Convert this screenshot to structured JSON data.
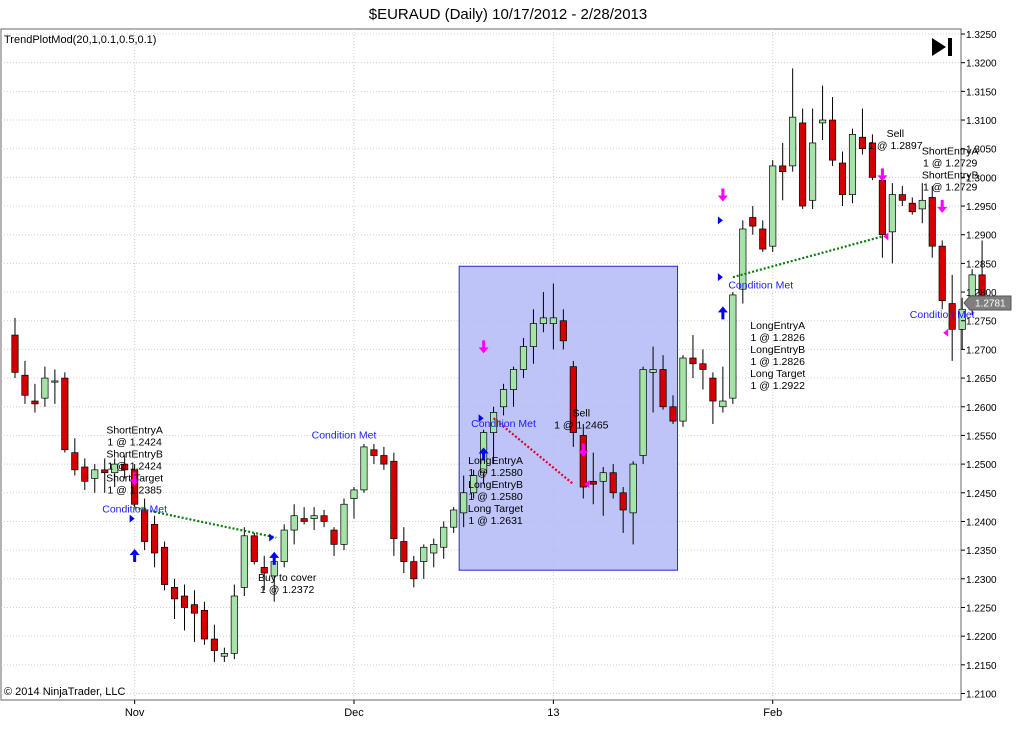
{
  "title": "$EURAUD (Daily)  10/17/2012 - 2/28/2013",
  "indicator_label": "TrendPlotMod(20,1,0.1,0.5,0.1)",
  "copyright": "© 2014 NinjaTrader, LLC",
  "current_price_label": "1.2781",
  "colors": {
    "up": "#a6e3a9",
    "down": "#d40000",
    "wick": "#000000",
    "highlight_fill": "#b3b9f7",
    "highlight_border": "#2a2acc",
    "marker_down": "#ff00ff",
    "marker_up": "#0000ff",
    "condition_text": "#1c1cff",
    "win_line": "#0a7a0a",
    "loss_line": "#e0002a",
    "last_price": "#7f7f7f"
  },
  "chart_data": {
    "type": "candlestick",
    "title": "$EURAUD (Daily)  10/17/2012 - 2/28/2013",
    "ylim": [
      1.21,
      1.325
    ],
    "y_ticks": [
      "1.3250",
      "1.3200",
      "1.3150",
      "1.3100",
      "1.3050",
      "1.3000",
      "1.2950",
      "1.2900",
      "1.2850",
      "1.2800",
      "1.2750",
      "1.2700",
      "1.2650",
      "1.2600",
      "1.2550",
      "1.2500",
      "1.2450",
      "1.2400",
      "1.2350",
      "1.2300",
      "1.2250",
      "1.2200",
      "1.2150",
      "1.2100"
    ],
    "x_tick_labels": [
      {
        "label": "Nov",
        "bar": 12
      },
      {
        "label": "Dec",
        "bar": 34
      },
      {
        "label": "13",
        "bar": 54
      },
      {
        "label": "Feb",
        "bar": 76
      }
    ],
    "grid": true,
    "bars": [
      {
        "o": 1.2725,
        "h": 1.2755,
        "l": 1.265,
        "c": 1.266
      },
      {
        "o": 1.2655,
        "h": 1.268,
        "l": 1.2605,
        "c": 1.262
      },
      {
        "o": 1.261,
        "h": 1.264,
        "l": 1.259,
        "c": 1.2605
      },
      {
        "o": 1.2615,
        "h": 1.267,
        "l": 1.26,
        "c": 1.265
      },
      {
        "o": 1.2645,
        "h": 1.2665,
        "l": 1.2605,
        "c": 1.2645
      },
      {
        "o": 1.265,
        "h": 1.266,
        "l": 1.252,
        "c": 1.2525
      },
      {
        "o": 1.252,
        "h": 1.2545,
        "l": 1.248,
        "c": 1.249
      },
      {
        "o": 1.2495,
        "h": 1.251,
        "l": 1.2455,
        "c": 1.247
      },
      {
        "o": 1.2475,
        "h": 1.25,
        "l": 1.245,
        "c": 1.249
      },
      {
        "o": 1.249,
        "h": 1.251,
        "l": 1.245,
        "c": 1.2485
      },
      {
        "o": 1.2485,
        "h": 1.251,
        "l": 1.246,
        "c": 1.25
      },
      {
        "o": 1.25,
        "h": 1.2515,
        "l": 1.2475,
        "c": 1.249
      },
      {
        "o": 1.249,
        "h": 1.25,
        "l": 1.2425,
        "c": 1.243
      },
      {
        "o": 1.242,
        "h": 1.244,
        "l": 1.235,
        "c": 1.2365
      },
      {
        "o": 1.2395,
        "h": 1.241,
        "l": 1.232,
        "c": 1.2345
      },
      {
        "o": 1.2355,
        "h": 1.2365,
        "l": 1.228,
        "c": 1.229
      },
      {
        "o": 1.2285,
        "h": 1.23,
        "l": 1.223,
        "c": 1.2265
      },
      {
        "o": 1.227,
        "h": 1.229,
        "l": 1.221,
        "c": 1.225
      },
      {
        "o": 1.2255,
        "h": 1.228,
        "l": 1.219,
        "c": 1.224
      },
      {
        "o": 1.2245,
        "h": 1.226,
        "l": 1.2185,
        "c": 1.2195
      },
      {
        "o": 1.2195,
        "h": 1.222,
        "l": 1.2155,
        "c": 1.2175
      },
      {
        "o": 1.2165,
        "h": 1.218,
        "l": 1.2155,
        "c": 1.217
      },
      {
        "o": 1.217,
        "h": 1.229,
        "l": 1.216,
        "c": 1.227
      },
      {
        "o": 1.2285,
        "h": 1.239,
        "l": 1.227,
        "c": 1.2375
      },
      {
        "o": 1.2375,
        "h": 1.238,
        "l": 1.2325,
        "c": 1.233
      },
      {
        "o": 1.232,
        "h": 1.234,
        "l": 1.228,
        "c": 1.231
      },
      {
        "o": 1.2305,
        "h": 1.2345,
        "l": 1.226,
        "c": 1.233
      },
      {
        "o": 1.233,
        "h": 1.2395,
        "l": 1.232,
        "c": 1.2385
      },
      {
        "o": 1.2385,
        "h": 1.243,
        "l": 1.236,
        "c": 1.241
      },
      {
        "o": 1.2405,
        "h": 1.2425,
        "l": 1.2395,
        "c": 1.24
      },
      {
        "o": 1.2405,
        "h": 1.2425,
        "l": 1.2385,
        "c": 1.241
      },
      {
        "o": 1.241,
        "h": 1.242,
        "l": 1.239,
        "c": 1.24
      },
      {
        "o": 1.2385,
        "h": 1.239,
        "l": 1.234,
        "c": 1.236
      },
      {
        "o": 1.236,
        "h": 1.244,
        "l": 1.235,
        "c": 1.243
      },
      {
        "o": 1.244,
        "h": 1.246,
        "l": 1.2405,
        "c": 1.2455
      },
      {
        "o": 1.2455,
        "h": 1.2535,
        "l": 1.245,
        "c": 1.253
      },
      {
        "o": 1.2525,
        "h": 1.2535,
        "l": 1.25,
        "c": 1.2515
      },
      {
        "o": 1.2515,
        "h": 1.253,
        "l": 1.249,
        "c": 1.25
      },
      {
        "o": 1.2505,
        "h": 1.252,
        "l": 1.234,
        "c": 1.237
      },
      {
        "o": 1.2365,
        "h": 1.239,
        "l": 1.231,
        "c": 1.233
      },
      {
        "o": 1.233,
        "h": 1.234,
        "l": 1.2285,
        "c": 1.23
      },
      {
        "o": 1.233,
        "h": 1.236,
        "l": 1.23,
        "c": 1.2355
      },
      {
        "o": 1.2345,
        "h": 1.237,
        "l": 1.232,
        "c": 1.236
      },
      {
        "o": 1.2355,
        "h": 1.24,
        "l": 1.2335,
        "c": 1.239
      },
      {
        "o": 1.239,
        "h": 1.2425,
        "l": 1.238,
        "c": 1.242
      },
      {
        "o": 1.2415,
        "h": 1.248,
        "l": 1.239,
        "c": 1.245
      },
      {
        "o": 1.245,
        "h": 1.249,
        "l": 1.244,
        "c": 1.248
      },
      {
        "o": 1.2485,
        "h": 1.256,
        "l": 1.2465,
        "c": 1.2555
      },
      {
        "o": 1.2555,
        "h": 1.26,
        "l": 1.25,
        "c": 1.259
      },
      {
        "o": 1.26,
        "h": 1.264,
        "l": 1.2585,
        "c": 1.263
      },
      {
        "o": 1.263,
        "h": 1.267,
        "l": 1.26,
        "c": 1.2665
      },
      {
        "o": 1.2665,
        "h": 1.272,
        "l": 1.265,
        "c": 1.2705
      },
      {
        "o": 1.2705,
        "h": 1.277,
        "l": 1.2675,
        "c": 1.2745
      },
      {
        "o": 1.2745,
        "h": 1.28,
        "l": 1.273,
        "c": 1.2755
      },
      {
        "o": 1.2745,
        "h": 1.2815,
        "l": 1.27,
        "c": 1.2755
      },
      {
        "o": 1.275,
        "h": 1.277,
        "l": 1.27,
        "c": 1.2715
      },
      {
        "o": 1.267,
        "h": 1.268,
        "l": 1.253,
        "c": 1.2555
      },
      {
        "o": 1.255,
        "h": 1.257,
        "l": 1.244,
        "c": 1.246
      },
      {
        "o": 1.247,
        "h": 1.252,
        "l": 1.243,
        "c": 1.2465
      },
      {
        "o": 1.247,
        "h": 1.2495,
        "l": 1.241,
        "c": 1.2485
      },
      {
        "o": 1.2485,
        "h": 1.25,
        "l": 1.244,
        "c": 1.245
      },
      {
        "o": 1.245,
        "h": 1.246,
        "l": 1.238,
        "c": 1.242
      },
      {
        "o": 1.2415,
        "h": 1.2505,
        "l": 1.236,
        "c": 1.25
      },
      {
        "o": 1.2515,
        "h": 1.267,
        "l": 1.25,
        "c": 1.2665
      },
      {
        "o": 1.266,
        "h": 1.2705,
        "l": 1.259,
        "c": 1.2665
      },
      {
        "o": 1.2665,
        "h": 1.269,
        "l": 1.2595,
        "c": 1.26
      },
      {
        "o": 1.26,
        "h": 1.262,
        "l": 1.257,
        "c": 1.2575
      },
      {
        "o": 1.2575,
        "h": 1.269,
        "l": 1.2565,
        "c": 1.2685
      },
      {
        "o": 1.2685,
        "h": 1.2725,
        "l": 1.265,
        "c": 1.2675
      },
      {
        "o": 1.2675,
        "h": 1.27,
        "l": 1.263,
        "c": 1.2665
      },
      {
        "o": 1.265,
        "h": 1.266,
        "l": 1.257,
        "c": 1.261
      },
      {
        "o": 1.26,
        "h": 1.267,
        "l": 1.259,
        "c": 1.261
      },
      {
        "o": 1.2615,
        "h": 1.28,
        "l": 1.2605,
        "c": 1.2795
      },
      {
        "o": 1.2805,
        "h": 1.2925,
        "l": 1.278,
        "c": 1.291
      },
      {
        "o": 1.293,
        "h": 1.295,
        "l": 1.29,
        "c": 1.2915
      },
      {
        "o": 1.291,
        "h": 1.2925,
        "l": 1.287,
        "c": 1.2875
      },
      {
        "o": 1.288,
        "h": 1.303,
        "l": 1.287,
        "c": 1.302
      },
      {
        "o": 1.302,
        "h": 1.306,
        "l": 1.296,
        "c": 1.301
      },
      {
        "o": 1.302,
        "h": 1.319,
        "l": 1.301,
        "c": 1.3105
      },
      {
        "o": 1.3095,
        "h": 1.312,
        "l": 1.2945,
        "c": 1.295
      },
      {
        "o": 1.296,
        "h": 1.312,
        "l": 1.2945,
        "c": 1.306
      },
      {
        "o": 1.3095,
        "h": 1.316,
        "l": 1.3065,
        "c": 1.31
      },
      {
        "o": 1.31,
        "h": 1.314,
        "l": 1.302,
        "c": 1.303
      },
      {
        "o": 1.3025,
        "h": 1.3045,
        "l": 1.295,
        "c": 1.297
      },
      {
        "o": 1.297,
        "h": 1.3085,
        "l": 1.2955,
        "c": 1.3075
      },
      {
        "o": 1.307,
        "h": 1.312,
        "l": 1.304,
        "c": 1.305
      },
      {
        "o": 1.306,
        "h": 1.3075,
        "l": 1.2995,
        "c": 1.3
      },
      {
        "o": 1.2995,
        "h": 1.301,
        "l": 1.286,
        "c": 1.29
      },
      {
        "o": 1.2905,
        "h": 1.299,
        "l": 1.285,
        "c": 1.297
      },
      {
        "o": 1.297,
        "h": 1.2985,
        "l": 1.295,
        "c": 1.296
      },
      {
        "o": 1.2955,
        "h": 1.2965,
        "l": 1.2935,
        "c": 1.294
      },
      {
        "o": 1.2945,
        "h": 1.299,
        "l": 1.292,
        "c": 1.296
      },
      {
        "o": 1.2965,
        "h": 1.2985,
        "l": 1.286,
        "c": 1.288
      },
      {
        "o": 1.288,
        "h": 1.289,
        "l": 1.277,
        "c": 1.2785
      },
      {
        "o": 1.278,
        "h": 1.283,
        "l": 1.268,
        "c": 1.2735
      },
      {
        "o": 1.2735,
        "h": 1.279,
        "l": 1.27,
        "c": 1.277
      },
      {
        "o": 1.277,
        "h": 1.284,
        "l": 1.276,
        "c": 1.283
      },
      {
        "o": 1.283,
        "h": 1.289,
        "l": 1.277,
        "c": 1.2785
      }
    ],
    "highlight_region": {
      "from_bar": 45,
      "to_bar": 66,
      "y_top": 1.2845,
      "y_bottom": 1.2315
    },
    "annotations": [
      {
        "bar": 12.0,
        "price": 1.2553,
        "lines": [
          "ShortEntryA",
          "1 @ 1.2424",
          "ShortEntryB",
          "1 @ 1.2424",
          "Short Target",
          "1 @ 1.2385"
        ],
        "color": "#000000",
        "anchor": "middle"
      },
      {
        "bar": 12.0,
        "price": 1.2416,
        "lines": [
          "Condition Met"
        ],
        "color": "#1c1cff",
        "anchor": "middle"
      },
      {
        "bar": 27.3,
        "price": 1.2296,
        "lines": [
          "Buy to cover",
          "1 @ 1.2372"
        ],
        "color": "#000000",
        "anchor": "middle"
      },
      {
        "bar": 33.0,
        "price": 1.2545,
        "lines": [
          "Condition Met"
        ],
        "color": "#1c1cff",
        "anchor": "middle"
      },
      {
        "bar": 49.0,
        "price": 1.2565,
        "lines": [
          "Condition Met"
        ],
        "color": "#1c1cff",
        "anchor": "middle"
      },
      {
        "bar": 48.2,
        "price": 1.25,
        "lines": [
          "LongEntryA",
          "1 @ 1.2580",
          "LongEntryB",
          "1 @ 1.2580",
          "Long Target",
          "1 @ 1.2631"
        ],
        "color": "#000000",
        "anchor": "middle"
      },
      {
        "bar": 56.8,
        "price": 1.2583,
        "lines": [
          "Sell",
          "1 @ 1.2465"
        ],
        "color": "#000000",
        "anchor": "middle"
      },
      {
        "bar": 74.8,
        "price": 1.2806,
        "lines": [
          "Condition Met"
        ],
        "color": "#1c1cff",
        "anchor": "middle"
      },
      {
        "bar": 76.5,
        "price": 1.2736,
        "lines": [
          "LongEntryA",
          "1 @ 1.2826",
          "LongEntryB",
          "1 @ 1.2826",
          "Long Target",
          "1 @ 1.2922"
        ],
        "color": "#000000",
        "anchor": "middle"
      },
      {
        "bar": 88.3,
        "price": 1.307,
        "lines": [
          "Sell",
          "1 @ 1.2897"
        ],
        "color": "#000000",
        "anchor": "middle"
      },
      {
        "bar": 93.8,
        "price": 1.304,
        "lines": [
          "ShortEntryA",
          "1 @ 1.2729",
          "ShortEntryB",
          "1 @ 1.2729"
        ],
        "color": "#000000",
        "anchor": "middle"
      },
      {
        "bar": 93.0,
        "price": 1.2755,
        "lines": [
          "Condition Met"
        ],
        "color": "#1c1cff",
        "anchor": "middle"
      }
    ],
    "trade_lines": [
      {
        "from_bar": 12.0,
        "from_price": 1.2424,
        "to_bar": 26.2,
        "to_price": 1.2372,
        "color": "#0a7a0a"
      },
      {
        "from_bar": 48.0,
        "from_price": 1.258,
        "to_bar": 56.0,
        "to_price": 1.2465,
        "color": "#e0002a"
      },
      {
        "from_bar": 72.0,
        "from_price": 1.2826,
        "to_bar": 87.0,
        "to_price": 1.2897,
        "color": "#0a7a0a"
      }
    ],
    "markers": [
      {
        "bar": 12.0,
        "price": 1.247,
        "type": "down-arrow"
      },
      {
        "bar": 12.0,
        "price": 1.2345,
        "type": "up-arrow"
      },
      {
        "bar": 12.0,
        "price": 1.2405,
        "type": "tri-right"
      },
      {
        "bar": 26.0,
        "price": 1.234,
        "type": "up-arrow"
      },
      {
        "bar": 26.0,
        "price": 1.2372,
        "type": "tri-right"
      },
      {
        "bar": 47.0,
        "price": 1.27,
        "type": "down-arrow"
      },
      {
        "bar": 47.0,
        "price": 1.2522,
        "type": "up-arrow"
      },
      {
        "bar": 47.0,
        "price": 1.258,
        "type": "tri-right"
      },
      {
        "bar": 57.0,
        "price": 1.252,
        "type": "down-arrow"
      },
      {
        "bar": 57.0,
        "price": 1.2465,
        "type": "tri-left"
      },
      {
        "bar": 71.0,
        "price": 1.2965,
        "type": "down-arrow"
      },
      {
        "bar": 71.0,
        "price": 1.2768,
        "type": "up-arrow"
      },
      {
        "bar": 71.0,
        "price": 1.2826,
        "type": "tri-right"
      },
      {
        "bar": 71.0,
        "price": 1.2925,
        "type": "tri-right"
      },
      {
        "bar": 87.0,
        "price": 1.3,
        "type": "down-arrow"
      },
      {
        "bar": 87.0,
        "price": 1.2897,
        "type": "tri-left"
      },
      {
        "bar": 93.0,
        "price": 1.2945,
        "type": "down-arrow"
      },
      {
        "bar": 93.0,
        "price": 1.2729,
        "type": "tri-left"
      }
    ]
  }
}
